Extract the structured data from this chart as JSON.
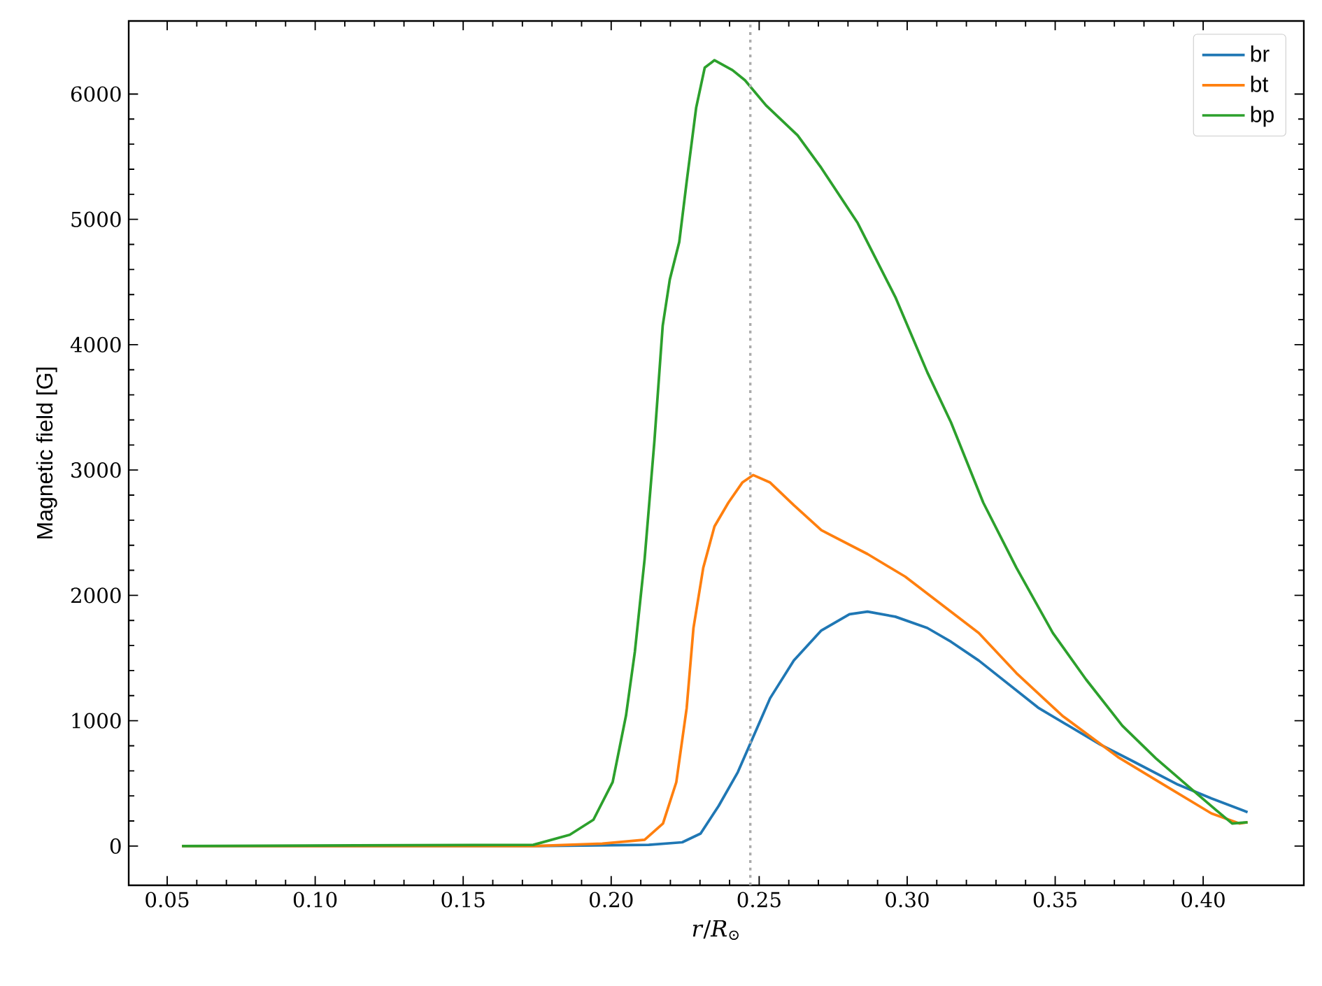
{
  "chart_data": {
    "type": "line",
    "xlabel": "*r*/*R*$_{⊙}$",
    "ylabel": "Magnetic field [G]",
    "xlim": [
      0.037,
      0.434
    ],
    "ylim": [
      -313,
      6583
    ],
    "xticks": [
      {
        "value": 0.05,
        "label": "0.05"
      },
      {
        "value": 0.1,
        "label": "0.10"
      },
      {
        "value": 0.15,
        "label": "0.15"
      },
      {
        "value": 0.2,
        "label": "0.20"
      },
      {
        "value": 0.25,
        "label": "0.25"
      },
      {
        "value": 0.3,
        "label": "0.30"
      },
      {
        "value": 0.35,
        "label": "0.35"
      },
      {
        "value": 0.4,
        "label": "0.40"
      }
    ],
    "yticks": [
      0,
      1000,
      2000,
      3000,
      4000,
      5000,
      6000
    ],
    "legend": "top right",
    "grid": false,
    "marker": "none",
    "line_style": "solid",
    "ref_lines": [
      {
        "axis": "x",
        "value": 0.247,
        "color": "#aaaaaa",
        "line_style": "dotted"
      }
    ],
    "series": [
      {
        "name": "br",
        "color": "#1f77b4",
        "x": [
          0.055,
          0.1737,
          0.2127,
          0.224,
          0.2302,
          0.2363,
          0.2428,
          0.2476,
          0.2537,
          0.2617,
          0.271,
          0.2805,
          0.2866,
          0.296,
          0.3068,
          0.3148,
          0.3242,
          0.3445,
          0.3652,
          0.376,
          0.3915,
          0.4028,
          0.415
        ],
        "values": [
          0,
          0,
          10,
          30,
          100,
          320,
          590,
          850,
          1180,
          1480,
          1720,
          1850,
          1870,
          1830,
          1740,
          1630,
          1480,
          1100,
          810,
          680,
          490,
          380,
          270
        ]
      },
      {
        "name": "bt",
        "color": "#ff7f0e",
        "x": [
          0.055,
          0.1737,
          0.197,
          0.2113,
          0.2175,
          0.222,
          0.2255,
          0.2278,
          0.2311,
          0.2349,
          0.2396,
          0.2443,
          0.248,
          0.2537,
          0.2617,
          0.271,
          0.2866,
          0.2993,
          0.3148,
          0.3242,
          0.3369,
          0.3524,
          0.3712,
          0.3887,
          0.4028,
          0.4122,
          0.415
        ],
        "values": [
          0,
          0,
          20,
          50,
          180,
          510,
          1100,
          1740,
          2220,
          2550,
          2740,
          2900,
          2960,
          2900,
          2720,
          2520,
          2330,
          2150,
          1870,
          1700,
          1380,
          1040,
          710,
          460,
          260,
          180,
          190
        ]
      },
      {
        "name": "bp",
        "color": "#2ca02c",
        "x": [
          0.055,
          0.1737,
          0.186,
          0.194,
          0.2005,
          0.205,
          0.208,
          0.2113,
          0.2146,
          0.2174,
          0.2198,
          0.223,
          0.2255,
          0.2287,
          0.2316,
          0.2349,
          0.241,
          0.2452,
          0.2523,
          0.263,
          0.271,
          0.2833,
          0.296,
          0.3068,
          0.3148,
          0.3257,
          0.3369,
          0.3492,
          0.3604,
          0.3727,
          0.384,
          0.3948,
          0.4042,
          0.4098,
          0.415
        ],
        "values": [
          0,
          10,
          90,
          210,
          510,
          1040,
          1550,
          2290,
          3230,
          4150,
          4520,
          4820,
          5300,
          5890,
          6210,
          6270,
          6190,
          6110,
          5910,
          5670,
          5410,
          4970,
          4380,
          3780,
          3380,
          2740,
          2220,
          1700,
          1330,
          960,
          700,
          480,
          290,
          180,
          190
        ]
      }
    ]
  }
}
